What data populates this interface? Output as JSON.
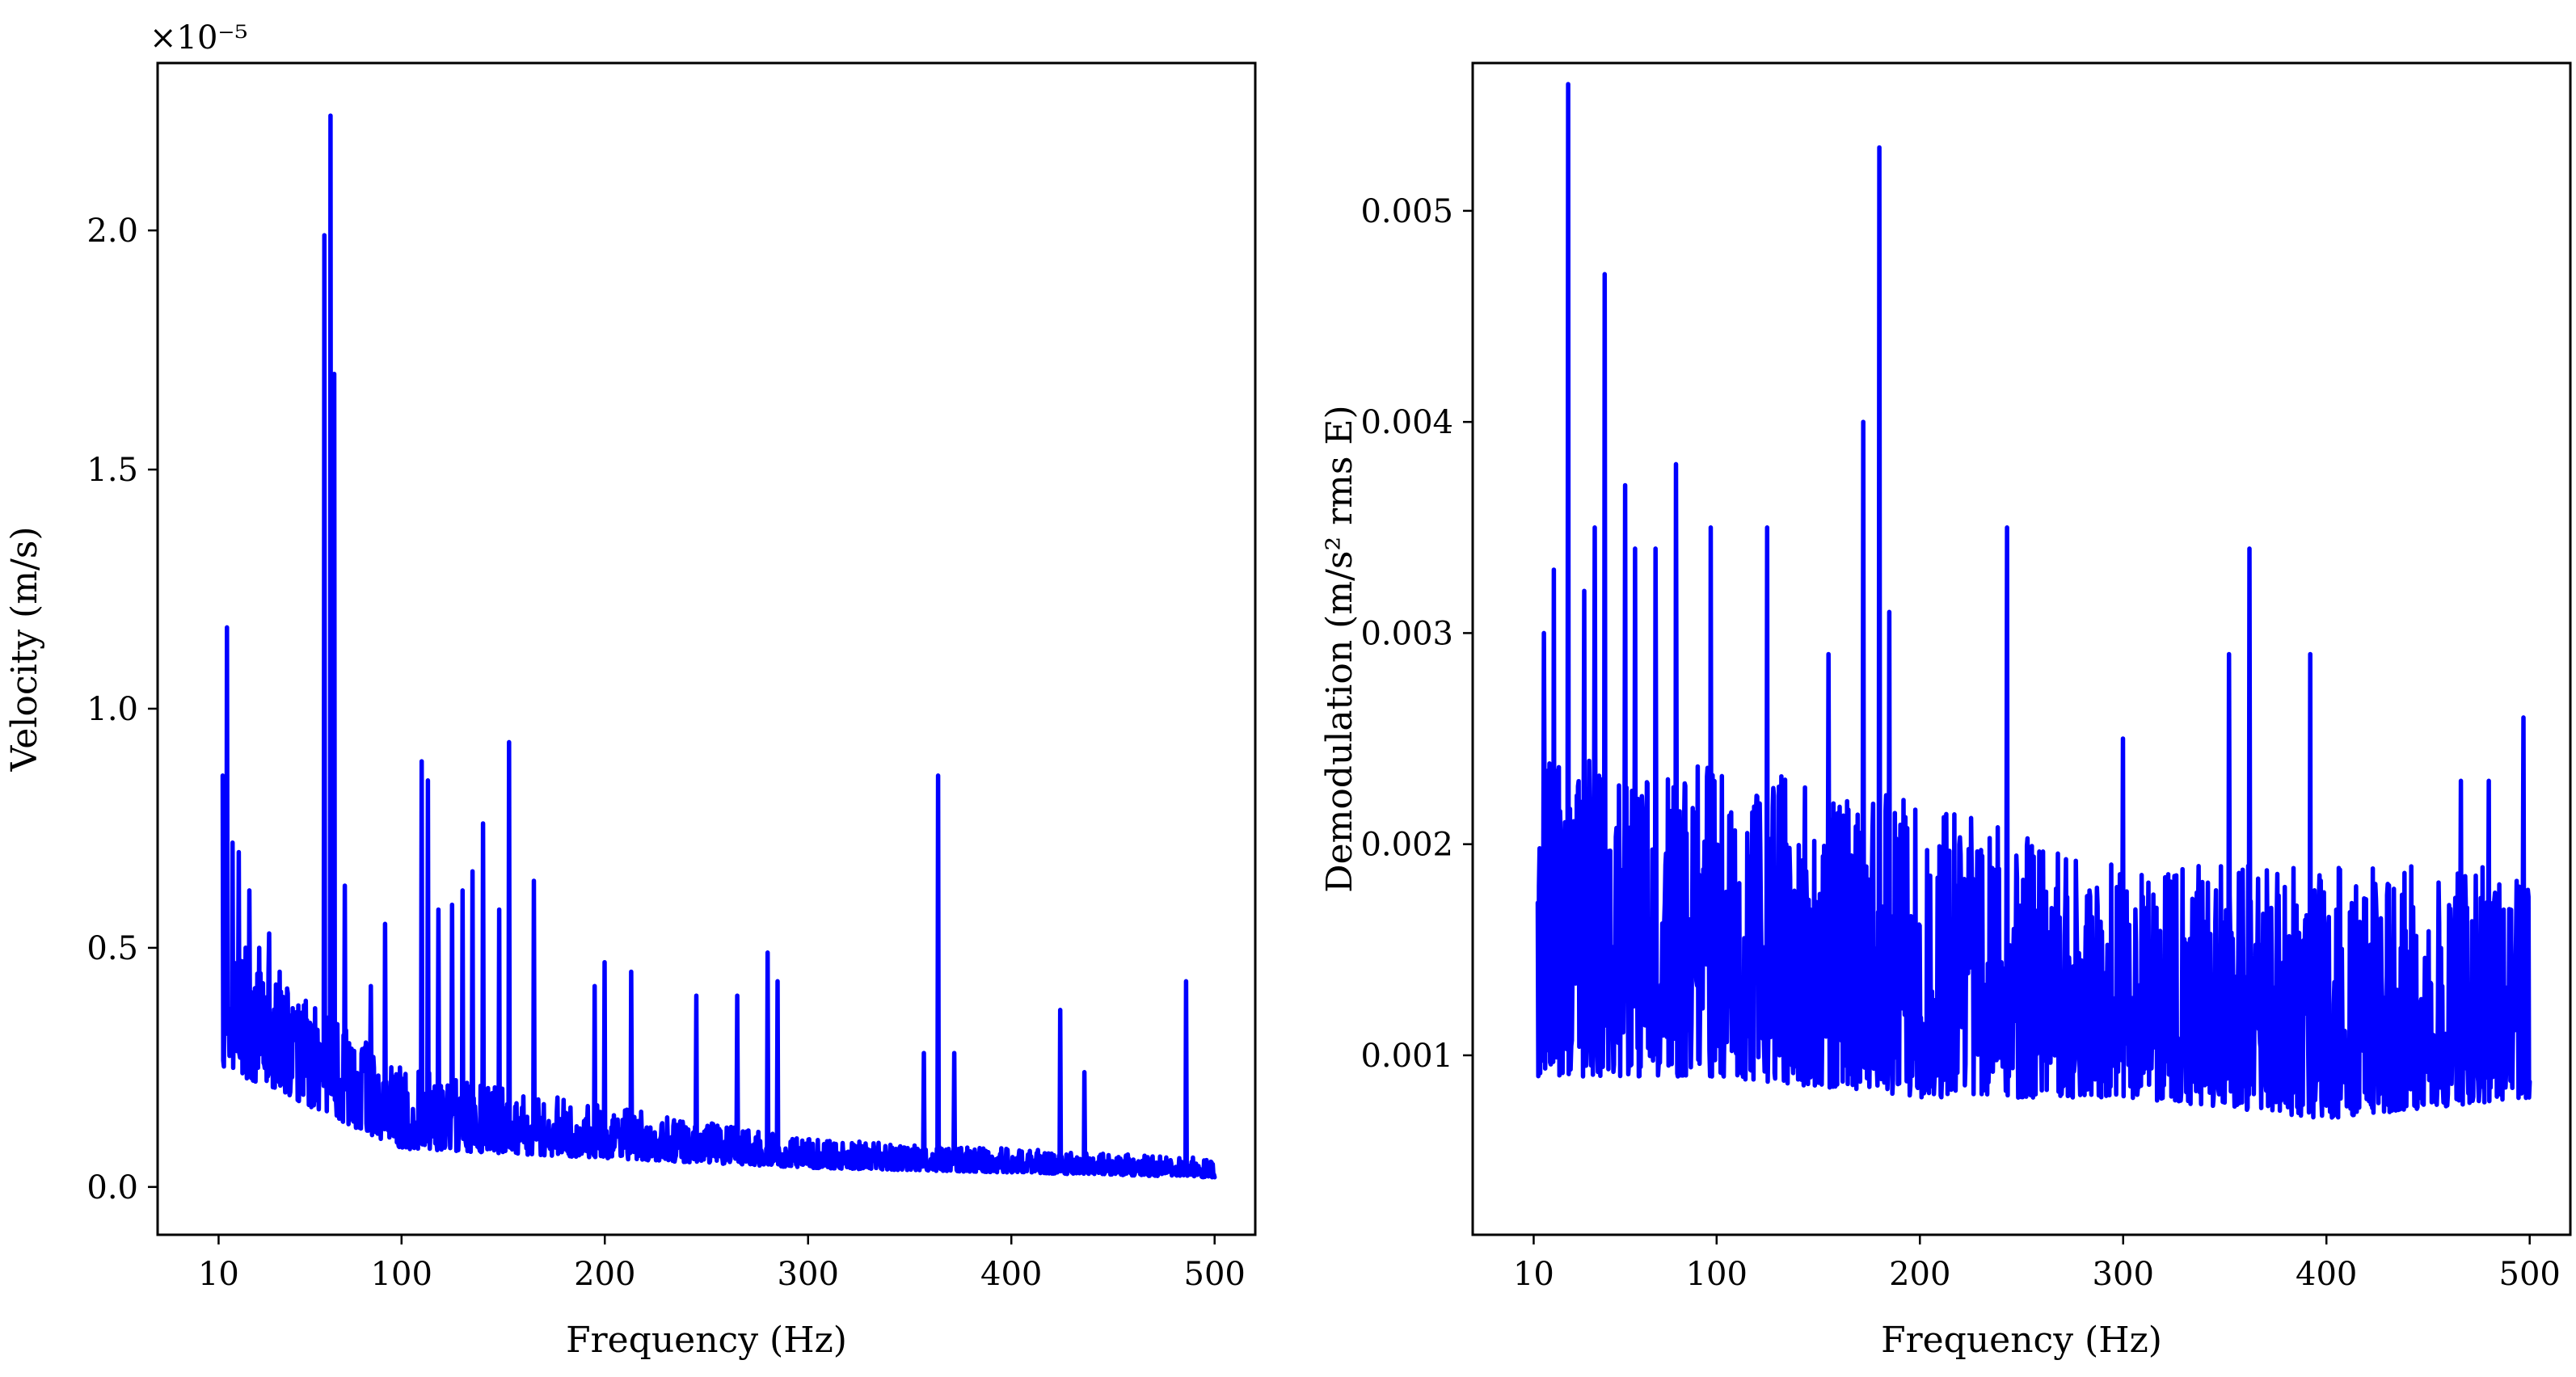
{
  "chart_data": [
    {
      "type": "line",
      "xlabel": "Frequency (Hz)",
      "ylabel": "Velocity (m/s)",
      "offset_label": "×10⁻⁵",
      "xlim": [
        -20,
        520
      ],
      "ylim": [
        -0.1,
        2.35
      ],
      "xticks": [
        10,
        100,
        200,
        300,
        400,
        500
      ],
      "xtick_labels": [
        "10",
        "100",
        "200",
        "300",
        "400",
        "500"
      ],
      "yticks": [
        0.0,
        0.5,
        1.0,
        1.5,
        2.0
      ],
      "ytick_labels": [
        "0.0",
        "0.5",
        "1.0",
        "1.5",
        "2.0"
      ],
      "grid": false,
      "color": "#0000ff",
      "x_range": [
        12,
        500
      ],
      "noise_envelope": [
        [
          12,
          0.55
        ],
        [
          50,
          0.4
        ],
        [
          100,
          0.25
        ],
        [
          200,
          0.17
        ],
        [
          300,
          0.1
        ],
        [
          400,
          0.08
        ],
        [
          500,
          0.06
        ]
      ],
      "noise_floor": [
        [
          12,
          0.25
        ],
        [
          100,
          0.08
        ],
        [
          300,
          0.04
        ],
        [
          500,
          0.02
        ]
      ],
      "peaks": [
        [
          12,
          0.86
        ],
        [
          14,
          1.17
        ],
        [
          17,
          0.72
        ],
        [
          20,
          0.7
        ],
        [
          25,
          0.62
        ],
        [
          30,
          0.5
        ],
        [
          35,
          0.53
        ],
        [
          40,
          0.45
        ],
        [
          62,
          1.99
        ],
        [
          65,
          2.24
        ],
        [
          67,
          1.7
        ],
        [
          72,
          0.63
        ],
        [
          85,
          0.42
        ],
        [
          92,
          0.55
        ],
        [
          110,
          0.89
        ],
        [
          113,
          0.85
        ],
        [
          118,
          0.58
        ],
        [
          125,
          0.59
        ],
        [
          130,
          0.62
        ],
        [
          135,
          0.66
        ],
        [
          140,
          0.76
        ],
        [
          148,
          0.58
        ],
        [
          153,
          0.93
        ],
        [
          165,
          0.64
        ],
        [
          195,
          0.42
        ],
        [
          200,
          0.47
        ],
        [
          213,
          0.45
        ],
        [
          245,
          0.4
        ],
        [
          265,
          0.4
        ],
        [
          280,
          0.49
        ],
        [
          285,
          0.43
        ],
        [
          357,
          0.28
        ],
        [
          364,
          0.86
        ],
        [
          372,
          0.28
        ],
        [
          424,
          0.37
        ],
        [
          436,
          0.24
        ],
        [
          486,
          0.43
        ]
      ]
    },
    {
      "type": "line",
      "xlabel": "Frequency (Hz)",
      "ylabel": "Demodulation (m/s² rms E)",
      "xlim": [
        -20,
        520
      ],
      "ylim": [
        0.00015,
        0.0057
      ],
      "xticks": [
        10,
        100,
        200,
        300,
        400,
        500
      ],
      "xtick_labels": [
        "10",
        "100",
        "200",
        "300",
        "400",
        "500"
      ],
      "yticks": [
        0.001,
        0.002,
        0.003,
        0.004,
        0.005
      ],
      "ytick_labels": [
        "0.001",
        "0.002",
        "0.003",
        "0.004",
        "0.005"
      ],
      "grid": false,
      "color": "#0000ff",
      "x_range": [
        12,
        500
      ],
      "noise_envelope": [
        [
          12,
          0.0024
        ],
        [
          100,
          0.0024
        ],
        [
          200,
          0.0022
        ],
        [
          300,
          0.0019
        ],
        [
          400,
          0.0019
        ],
        [
          500,
          0.0019
        ]
      ],
      "noise_floor": [
        [
          12,
          0.0009
        ],
        [
          100,
          0.0009
        ],
        [
          200,
          0.0008
        ],
        [
          300,
          0.0008
        ],
        [
          400,
          0.0007
        ],
        [
          500,
          0.0008
        ]
      ],
      "peaks": [
        [
          15,
          0.003
        ],
        [
          20,
          0.0033
        ],
        [
          27,
          0.0056
        ],
        [
          35,
          0.0032
        ],
        [
          40,
          0.0035
        ],
        [
          45,
          0.0047
        ],
        [
          55,
          0.0037
        ],
        [
          60,
          0.0034
        ],
        [
          70,
          0.0034
        ],
        [
          80,
          0.0038
        ],
        [
          97,
          0.0035
        ],
        [
          125,
          0.0035
        ],
        [
          155,
          0.0029
        ],
        [
          172,
          0.004
        ],
        [
          180,
          0.0053
        ],
        [
          185,
          0.0031
        ],
        [
          243,
          0.0035
        ],
        [
          300,
          0.0025
        ],
        [
          352,
          0.0029
        ],
        [
          362,
          0.0034
        ],
        [
          392,
          0.0029
        ],
        [
          466,
          0.0023
        ],
        [
          480,
          0.0023
        ],
        [
          497,
          0.0026
        ]
      ]
    }
  ]
}
